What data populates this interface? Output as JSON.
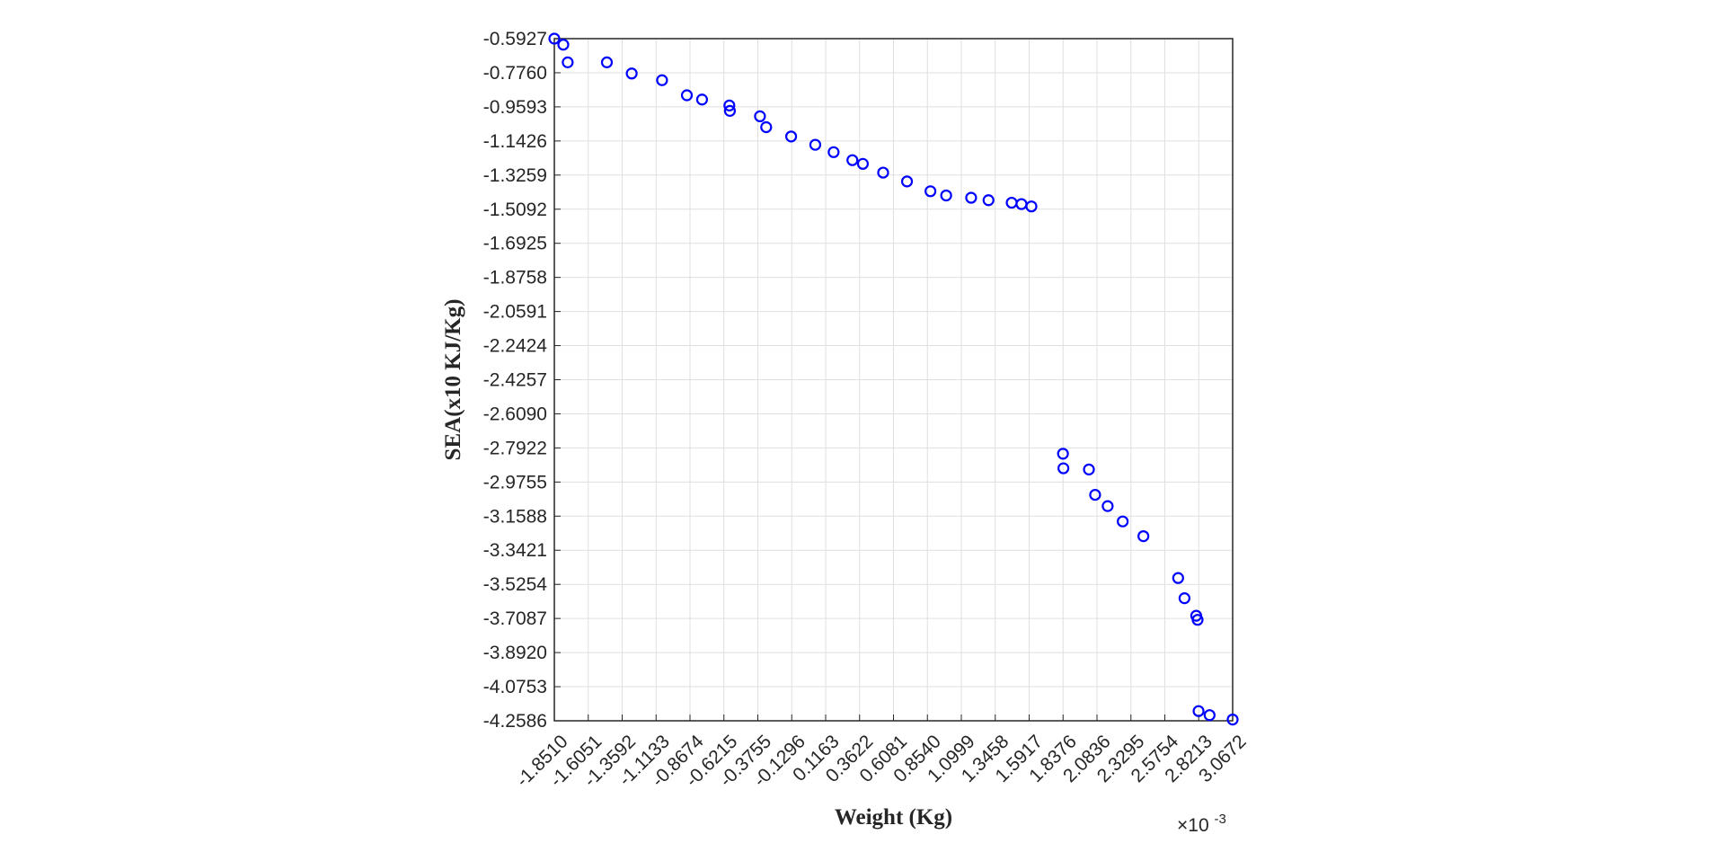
{
  "chart_data": {
    "type": "scatter",
    "title": "",
    "xlabel": "Weight (Kg)",
    "ylabel": "SEA(x10 KJ/Kg)",
    "x_exponent_label": "×10",
    "x_exponent_power": "-3",
    "xlim": [
      -1.851,
      3.0672
    ],
    "ylim": [
      -4.2586,
      -0.5927
    ],
    "x_ticks": [
      "-1.8510",
      "-1.6051",
      "-1.3592",
      "-1.1133",
      "-0.8674",
      "-0.6215",
      "-0.3755",
      "-0.1296",
      "0.1163",
      "0.3622",
      "0.6081",
      "0.8540",
      "1.0999",
      "1.3458",
      "1.5917",
      "1.8376",
      "2.0836",
      "2.3295",
      "2.5754",
      "2.8213",
      "3.0672"
    ],
    "y_ticks": [
      "-0.5927",
      "-0.7760",
      "-0.9593",
      "-1.1426",
      "-1.3259",
      "-1.5092",
      "-1.6925",
      "-1.8758",
      "-2.0591",
      "-2.2424",
      "-2.4257",
      "-2.6090",
      "-2.7922",
      "-2.9755",
      "-3.1588",
      "-3.3421",
      "-3.5254",
      "-3.7087",
      "-3.8920",
      "-4.0753",
      "-4.2586"
    ],
    "grid": true,
    "marker": "circle",
    "marker_color": "#0000ff",
    "grid_color": "#dfdfdf",
    "axes_color": "#262626",
    "series": [
      {
        "x": [
          -1.851,
          -1.786,
          -1.754,
          -1.47,
          -1.29,
          -1.07,
          -0.89,
          -0.78,
          -0.582,
          -0.578,
          -0.36,
          -0.315,
          -0.134,
          0.041,
          0.174,
          0.31,
          0.386,
          0.533,
          0.706,
          0.876,
          0.99,
          1.171,
          1.297,
          1.465,
          1.536,
          1.608,
          1.837,
          1.84,
          2.025,
          2.07,
          2.161,
          2.27,
          2.42,
          2.672,
          2.718,
          2.803,
          2.813,
          2.82,
          2.9,
          3.0672
        ],
        "y": [
          -0.5927,
          -0.625,
          -0.72,
          -0.72,
          -0.78,
          -0.8161,
          -0.8969,
          -0.92,
          -0.952,
          -0.9809,
          -1.01,
          -1.0684,
          -1.1184,
          -1.163,
          -1.2027,
          -1.2456,
          -1.2655,
          -1.3127,
          -1.36,
          -1.4128,
          -1.4354,
          -1.4477,
          -1.4608,
          -1.4744,
          -1.4817,
          -1.4943,
          -2.8234,
          -2.9016,
          -2.908,
          -3.0442,
          -3.1049,
          -3.1873,
          -3.2665,
          -3.4914,
          -3.6,
          -3.6941,
          -3.7161,
          -4.2064,
          -4.2282,
          -4.2518
        ]
      }
    ]
  }
}
